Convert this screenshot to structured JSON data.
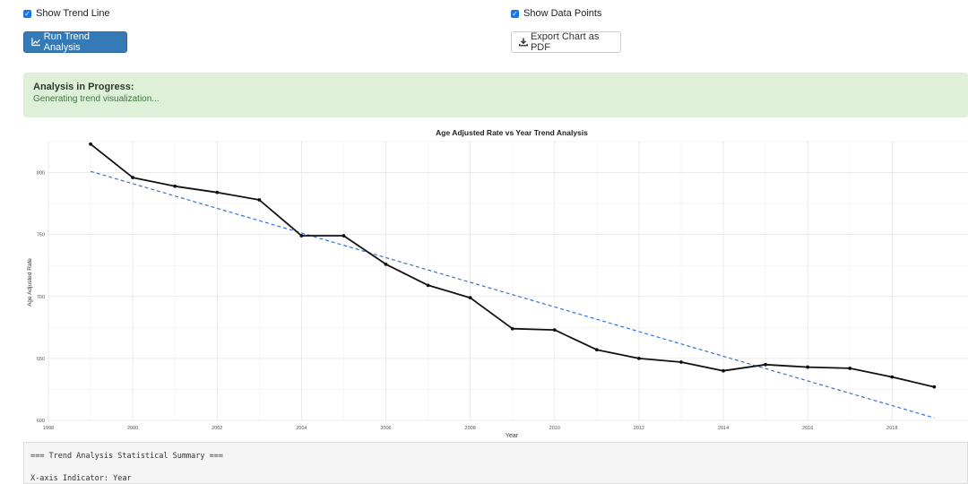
{
  "controls": {
    "show_trend_line": {
      "label": "Show Trend Line",
      "checked": true
    },
    "show_data_points": {
      "label": "Show Data Points",
      "checked": true
    },
    "run_button": {
      "label": "Run Trend Analysis",
      "icon": "line-chart-icon"
    },
    "export_button": {
      "label": "Export Chart as PDF",
      "icon": "download-icon"
    }
  },
  "status": {
    "title": "Analysis in Progress:",
    "message": "Generating trend visualization..."
  },
  "colors": {
    "primary": "#337ab7",
    "alert_bg": "#dff0d8",
    "series": "#111111",
    "trend": "#3b6fd4"
  },
  "chart_data": {
    "type": "line",
    "title": "Age Adjusted Rate vs Year Trend Analysis",
    "xlabel": "Year",
    "ylabel": "Age Adjusted Rate",
    "xlim": [
      1998,
      2019.8
    ],
    "ylim": [
      600,
      825
    ],
    "x_ticks": [
      1998,
      2000,
      2002,
      2004,
      2006,
      2008,
      2010,
      2012,
      2014,
      2016,
      2018
    ],
    "y_ticks": [
      600,
      650,
      700,
      750,
      800
    ],
    "grid": true,
    "series": [
      {
        "x": [
          1999,
          2000,
          2001,
          2002,
          2003,
          2004,
          2005,
          2006,
          2007,
          2008,
          2009,
          2010,
          2011,
          2012,
          2013,
          2014,
          2015,
          2016,
          2017,
          2018,
          2019
        ],
        "values": [
          823,
          796,
          789,
          784,
          778,
          749,
          749,
          726,
          709,
          699,
          674,
          673,
          657,
          650,
          647,
          640,
          645,
          643,
          642,
          635,
          627
        ],
        "markers": true
      }
    ],
    "trend_line": {
      "x": [
        1999,
        2019
      ],
      "values": [
        801,
        602
      ],
      "style": "dashed"
    }
  },
  "summary": {
    "header": "=== Trend Analysis Statistical Summary ===",
    "x_indicator": "X-axis Indicator: Year"
  }
}
